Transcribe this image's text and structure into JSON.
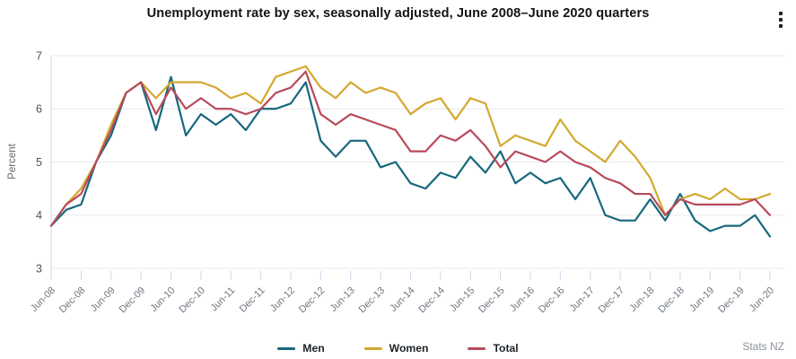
{
  "header": {
    "title": "Unemployment rate by sex, seasonally adjusted, June 2008–June 2020 quarters",
    "menu_icon": "kebab-menu-icon"
  },
  "attribution": "Stats NZ",
  "chart_data": {
    "type": "line",
    "title": "Unemployment rate by sex, seasonally adjusted, June 2008–June 2020 quarters",
    "xlabel": "",
    "ylabel": "Percent",
    "ylim": [
      3,
      7
    ],
    "yticks": [
      3,
      4,
      5,
      6,
      7
    ],
    "grid": true,
    "legend_position": "bottom",
    "x_label_step": 2,
    "x": [
      "Jun-08",
      "Sep-08",
      "Dec-08",
      "Mar-09",
      "Jun-09",
      "Sep-09",
      "Dec-09",
      "Mar-10",
      "Jun-10",
      "Sep-10",
      "Dec-10",
      "Mar-11",
      "Jun-11",
      "Sep-11",
      "Dec-11",
      "Mar-12",
      "Jun-12",
      "Sep-12",
      "Dec-12",
      "Mar-13",
      "Jun-13",
      "Sep-13",
      "Dec-13",
      "Mar-14",
      "Jun-14",
      "Sep-14",
      "Dec-14",
      "Mar-15",
      "Jun-15",
      "Sep-15",
      "Dec-15",
      "Mar-16",
      "Jun-16",
      "Sep-16",
      "Dec-16",
      "Mar-17",
      "Jun-17",
      "Sep-17",
      "Dec-17",
      "Mar-18",
      "Jun-18",
      "Sep-18",
      "Dec-18",
      "Mar-19",
      "Jun-19",
      "Sep-19",
      "Dec-19",
      "Mar-20",
      "Jun-20"
    ],
    "series": [
      {
        "name": "Men",
        "color": "#16687d",
        "values": [
          3.8,
          4.1,
          4.2,
          5.0,
          5.5,
          6.3,
          6.5,
          5.6,
          6.6,
          5.5,
          5.9,
          5.7,
          5.9,
          5.6,
          6.0,
          6.0,
          6.1,
          6.5,
          5.4,
          5.1,
          5.4,
          5.4,
          4.9,
          5.0,
          4.6,
          4.5,
          4.8,
          4.7,
          5.1,
          4.8,
          5.2,
          4.6,
          4.8,
          4.6,
          4.7,
          4.3,
          4.7,
          4.0,
          3.9,
          3.9,
          4.3,
          3.9,
          4.4,
          3.9,
          3.7,
          3.8,
          3.8,
          4.0,
          3.6
        ]
      },
      {
        "name": "Women",
        "color": "#d4a82f",
        "values": [
          3.8,
          4.2,
          4.5,
          5.0,
          5.7,
          6.3,
          6.5,
          6.2,
          6.5,
          6.5,
          6.5,
          6.4,
          6.2,
          6.3,
          6.1,
          6.6,
          6.7,
          6.8,
          6.4,
          6.2,
          6.5,
          6.3,
          6.4,
          6.3,
          5.9,
          6.1,
          6.2,
          5.8,
          6.2,
          6.1,
          5.3,
          5.5,
          5.4,
          5.3,
          5.8,
          5.4,
          5.2,
          5.0,
          5.4,
          5.1,
          4.7,
          4.0,
          4.3,
          4.4,
          4.3,
          4.5,
          4.3,
          4.3,
          4.4
        ]
      },
      {
        "name": "Total",
        "color": "#b84a5a",
        "values": [
          3.8,
          4.2,
          4.4,
          5.0,
          5.6,
          6.3,
          6.5,
          5.9,
          6.4,
          6.0,
          6.2,
          6.0,
          6.0,
          5.9,
          6.0,
          6.3,
          6.4,
          6.7,
          5.9,
          5.7,
          5.9,
          5.8,
          5.7,
          5.6,
          5.2,
          5.2,
          5.5,
          5.4,
          5.6,
          5.3,
          4.9,
          5.2,
          5.1,
          5.0,
          5.2,
          5.0,
          4.9,
          4.7,
          4.6,
          4.4,
          4.4,
          4.0,
          4.3,
          4.2,
          4.2,
          4.2,
          4.2,
          4.3,
          4.0
        ]
      }
    ]
  }
}
